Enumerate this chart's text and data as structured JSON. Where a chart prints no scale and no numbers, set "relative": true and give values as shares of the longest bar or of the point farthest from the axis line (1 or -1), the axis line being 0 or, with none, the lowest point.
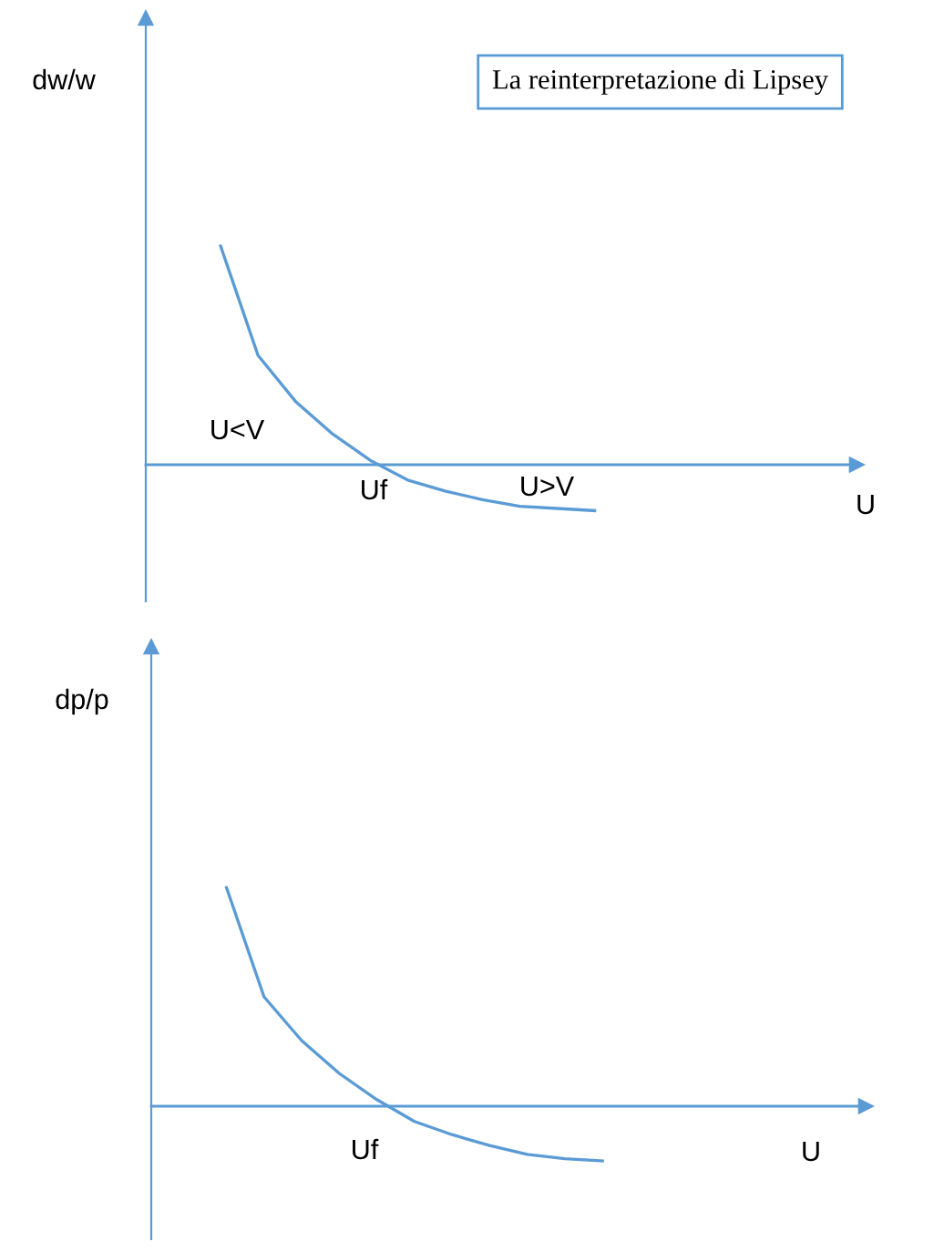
{
  "chart_data": [
    {
      "type": "line",
      "title": "La reinterpretazione di Lipsey",
      "ylabel": "dw/w",
      "xlabel": "U",
      "relative": true,
      "line_style": "solid",
      "ref_lines": [
        {
          "axis": "y",
          "value": 0,
          "color": "#5b9bd5"
        }
      ],
      "categories": [
        null,
        null,
        null,
        null,
        null,
        null,
        null,
        null,
        null,
        null,
        null,
        null,
        null,
        null,
        null,
        null,
        null,
        null,
        null,
        null
      ],
      "series": [
        {
          "color": "#5b9bd5",
          "values": [
            null,
            null,
            1,
            0.5,
            0.29,
            0.14,
            0.02,
            -0.07,
            -0.12,
            -0.16,
            -0.19,
            -0.2,
            -0.21,
            null,
            null,
            null,
            null,
            null,
            null,
            null
          ]
        }
      ],
      "annotations": [
        "U<V",
        "Uf",
        "U>V"
      ]
    },
    {
      "type": "line",
      "ylabel": "dp/p",
      "xlabel": "U",
      "relative": true,
      "line_style": "solid",
      "ref_lines": [
        {
          "axis": "y",
          "value": 0,
          "color": "#5b9bd5"
        }
      ],
      "categories": [
        null,
        null,
        null,
        null,
        null,
        null,
        null,
        null,
        null,
        null,
        null,
        null,
        null,
        null,
        null,
        null,
        null,
        null,
        null,
        null
      ],
      "series": [
        {
          "color": "#5b9bd5",
          "values": [
            null,
            null,
            1,
            0.5,
            0.3,
            0.15,
            0.03,
            -0.07,
            -0.13,
            -0.18,
            -0.22,
            -0.24,
            -0.25,
            null,
            null,
            null,
            null,
            null,
            null,
            null
          ]
        }
      ],
      "annotations": [
        "Uf"
      ]
    }
  ]
}
